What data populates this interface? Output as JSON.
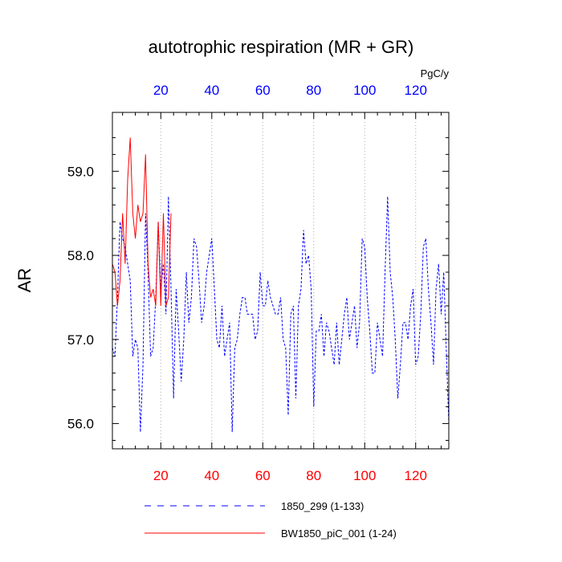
{
  "chart_data": {
    "type": "line",
    "title": "autotrophic respiration (MR + GR)",
    "units": "PgC/y",
    "ylabel": "AR",
    "xlabel": "",
    "xlim": [
      1,
      133
    ],
    "ylim": [
      55.7,
      59.7
    ],
    "x_ticks": [
      20,
      40,
      60,
      80,
      100,
      120
    ],
    "y_ticks": [
      56.0,
      57.0,
      58.0,
      59.0
    ],
    "y_tick_labels": [
      "56.0",
      "57.0",
      "58.0",
      "59.0"
    ],
    "bottom_tick_color": "#ff0000",
    "top_tick_color": "#0000ff",
    "grid": "vertical dotted at major x ticks",
    "series": [
      {
        "name": "1850_299 (1-133)",
        "color": "#0000ff",
        "style": "dashed",
        "x_start": 1,
        "values": [
          56.9,
          56.8,
          57.5,
          58.4,
          58.2,
          58.1,
          57.9,
          57.7,
          56.8,
          57.0,
          56.9,
          55.9,
          56.7,
          58.5,
          57.8,
          56.8,
          56.9,
          57.5,
          58.4,
          57.6,
          57.9,
          57.3,
          58.7,
          57.6,
          56.3,
          57.6,
          57.1,
          56.5,
          57.0,
          57.8,
          57.2,
          57.5,
          58.2,
          58.1,
          57.7,
          57.2,
          57.4,
          57.8,
          58.0,
          58.2,
          57.6,
          57.0,
          56.9,
          57.4,
          56.8,
          57.0,
          57.2,
          55.9,
          56.9,
          57.0,
          57.3,
          57.5,
          57.5,
          57.3,
          57.3,
          57.3,
          57.0,
          57.1,
          57.8,
          57.4,
          57.4,
          57.7,
          57.5,
          57.4,
          57.3,
          57.3,
          57.5,
          57.0,
          56.9,
          56.1,
          57.3,
          57.4,
          56.3,
          57.4,
          57.6,
          58.3,
          57.9,
          58.0,
          57.6,
          56.2,
          57.1,
          57.1,
          57.3,
          56.8,
          57.2,
          57.1,
          56.9,
          56.7,
          57.2,
          56.7,
          57.0,
          57.3,
          57.5,
          57.0,
          57.2,
          57.4,
          56.9,
          57.2,
          58.2,
          58.1,
          57.5,
          57.1,
          56.6,
          56.6,
          57.2,
          57.0,
          56.8,
          57.8,
          58.7,
          57.8,
          57.5,
          57.0,
          56.3,
          56.7,
          57.2,
          57.2,
          57.0,
          57.4,
          57.6,
          56.7,
          56.8,
          57.3,
          58.1,
          58.2,
          57.6,
          57.2,
          56.7,
          57.6,
          57.9,
          57.3,
          57.8,
          56.9,
          56.0
        ]
      },
      {
        "name": "BW1850_piC_001 (1-24)",
        "color": "#ff0000",
        "style": "solid",
        "x_start": 1,
        "values": [
          57.9,
          57.8,
          57.4,
          57.7,
          58.5,
          57.9,
          58.9,
          59.4,
          58.5,
          58.2,
          58.6,
          58.4,
          58.5,
          59.2,
          57.9,
          57.5,
          57.6,
          57.4,
          58.4,
          57.4,
          58.5,
          57.4,
          57.5,
          58.5
        ]
      }
    ]
  }
}
